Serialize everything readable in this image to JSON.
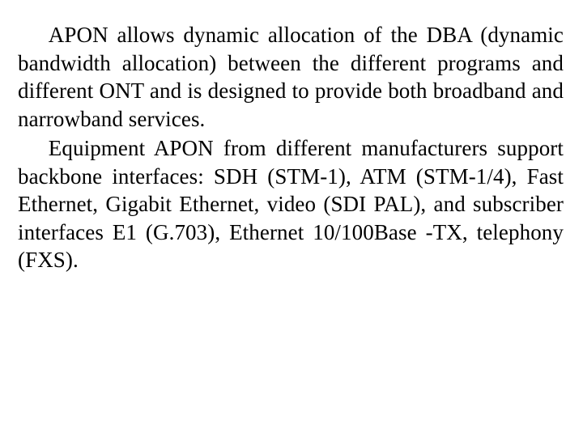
{
  "document": {
    "background_color": "#ffffff",
    "text_color": "#000000",
    "font_family": "Times New Roman",
    "font_size_pt": 20,
    "line_height": 1.28,
    "text_align": "justify",
    "text_indent_em": 1.4,
    "paragraphs": [
      "APON allows dynamic allocation of the DBA (dynamic bandwidth allocation) between the different programs and different ONT and is designed to provide both broadband and narrowband services.",
      "Equipment APON from different manufacturers support backbone interfaces: SDH (STM-1), ATM (STM-1/4), Fast Ethernet, Gigabit Ethernet, video (SDI PAL), and subscriber interfaces E1 (G.703), Ethernet 10/100Base -TX, telephony (FXS)."
    ]
  }
}
